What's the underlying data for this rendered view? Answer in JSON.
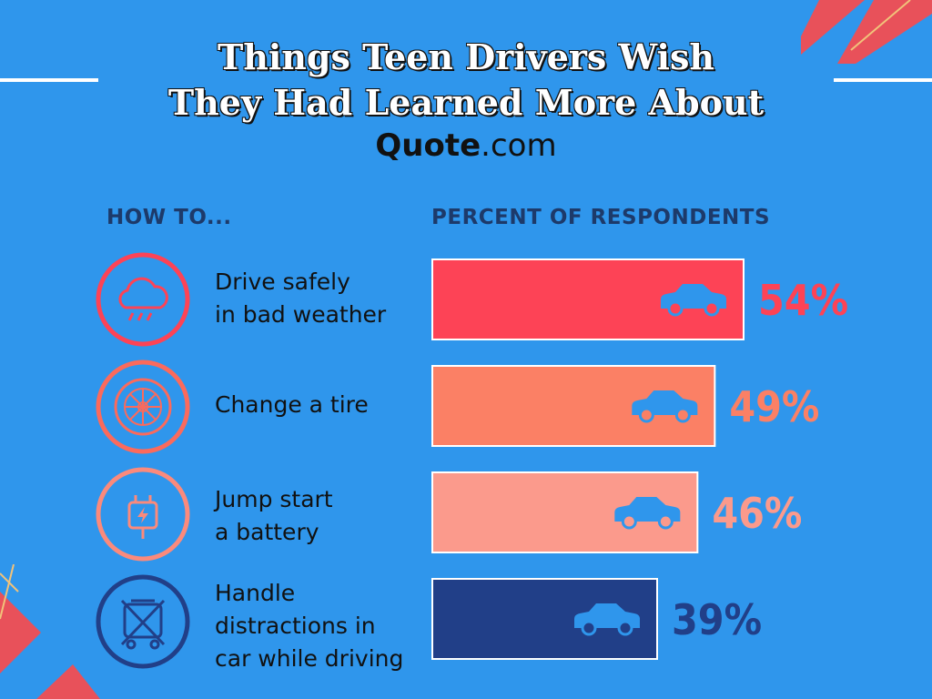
{
  "title_line1": "Things Teen Drivers Wish",
  "title_line2": "They Had Learned More About",
  "brand": {
    "bold": "Quote",
    "rest": ".com"
  },
  "header_left": "HOW TO...",
  "header_right": "PERCENT OF RESPONDENTS",
  "icons": [
    "rain-cloud-icon",
    "tire-icon",
    "battery-icon",
    "no-distractions-icon"
  ],
  "colors": {
    "bg": "#2f96ec",
    "c1": "#fd4356",
    "c2": "#fb8065",
    "c3": "#fb9a8c",
    "c4": "#213f88",
    "car": "#2f96ec"
  },
  "chart_data": {
    "type": "bar",
    "orientation": "horizontal",
    "title": "Things Teen Drivers Wish They Had Learned More About",
    "xlabel": "PERCENT OF RESPONDENTS",
    "ylabel": "HOW TO...",
    "categories": [
      "Drive safely\nin bad weather",
      "Change a tire",
      "Jump start\na battery",
      "Handle\ndistractions in\ncar while driving"
    ],
    "values": [
      54,
      49,
      46,
      39
    ],
    "value_labels": [
      "54%",
      "49%",
      "46%",
      "39%"
    ],
    "colors": [
      "#fd4356",
      "#fb8065",
      "#fb9a8c",
      "#213f88"
    ],
    "xlim": [
      0,
      54
    ]
  }
}
